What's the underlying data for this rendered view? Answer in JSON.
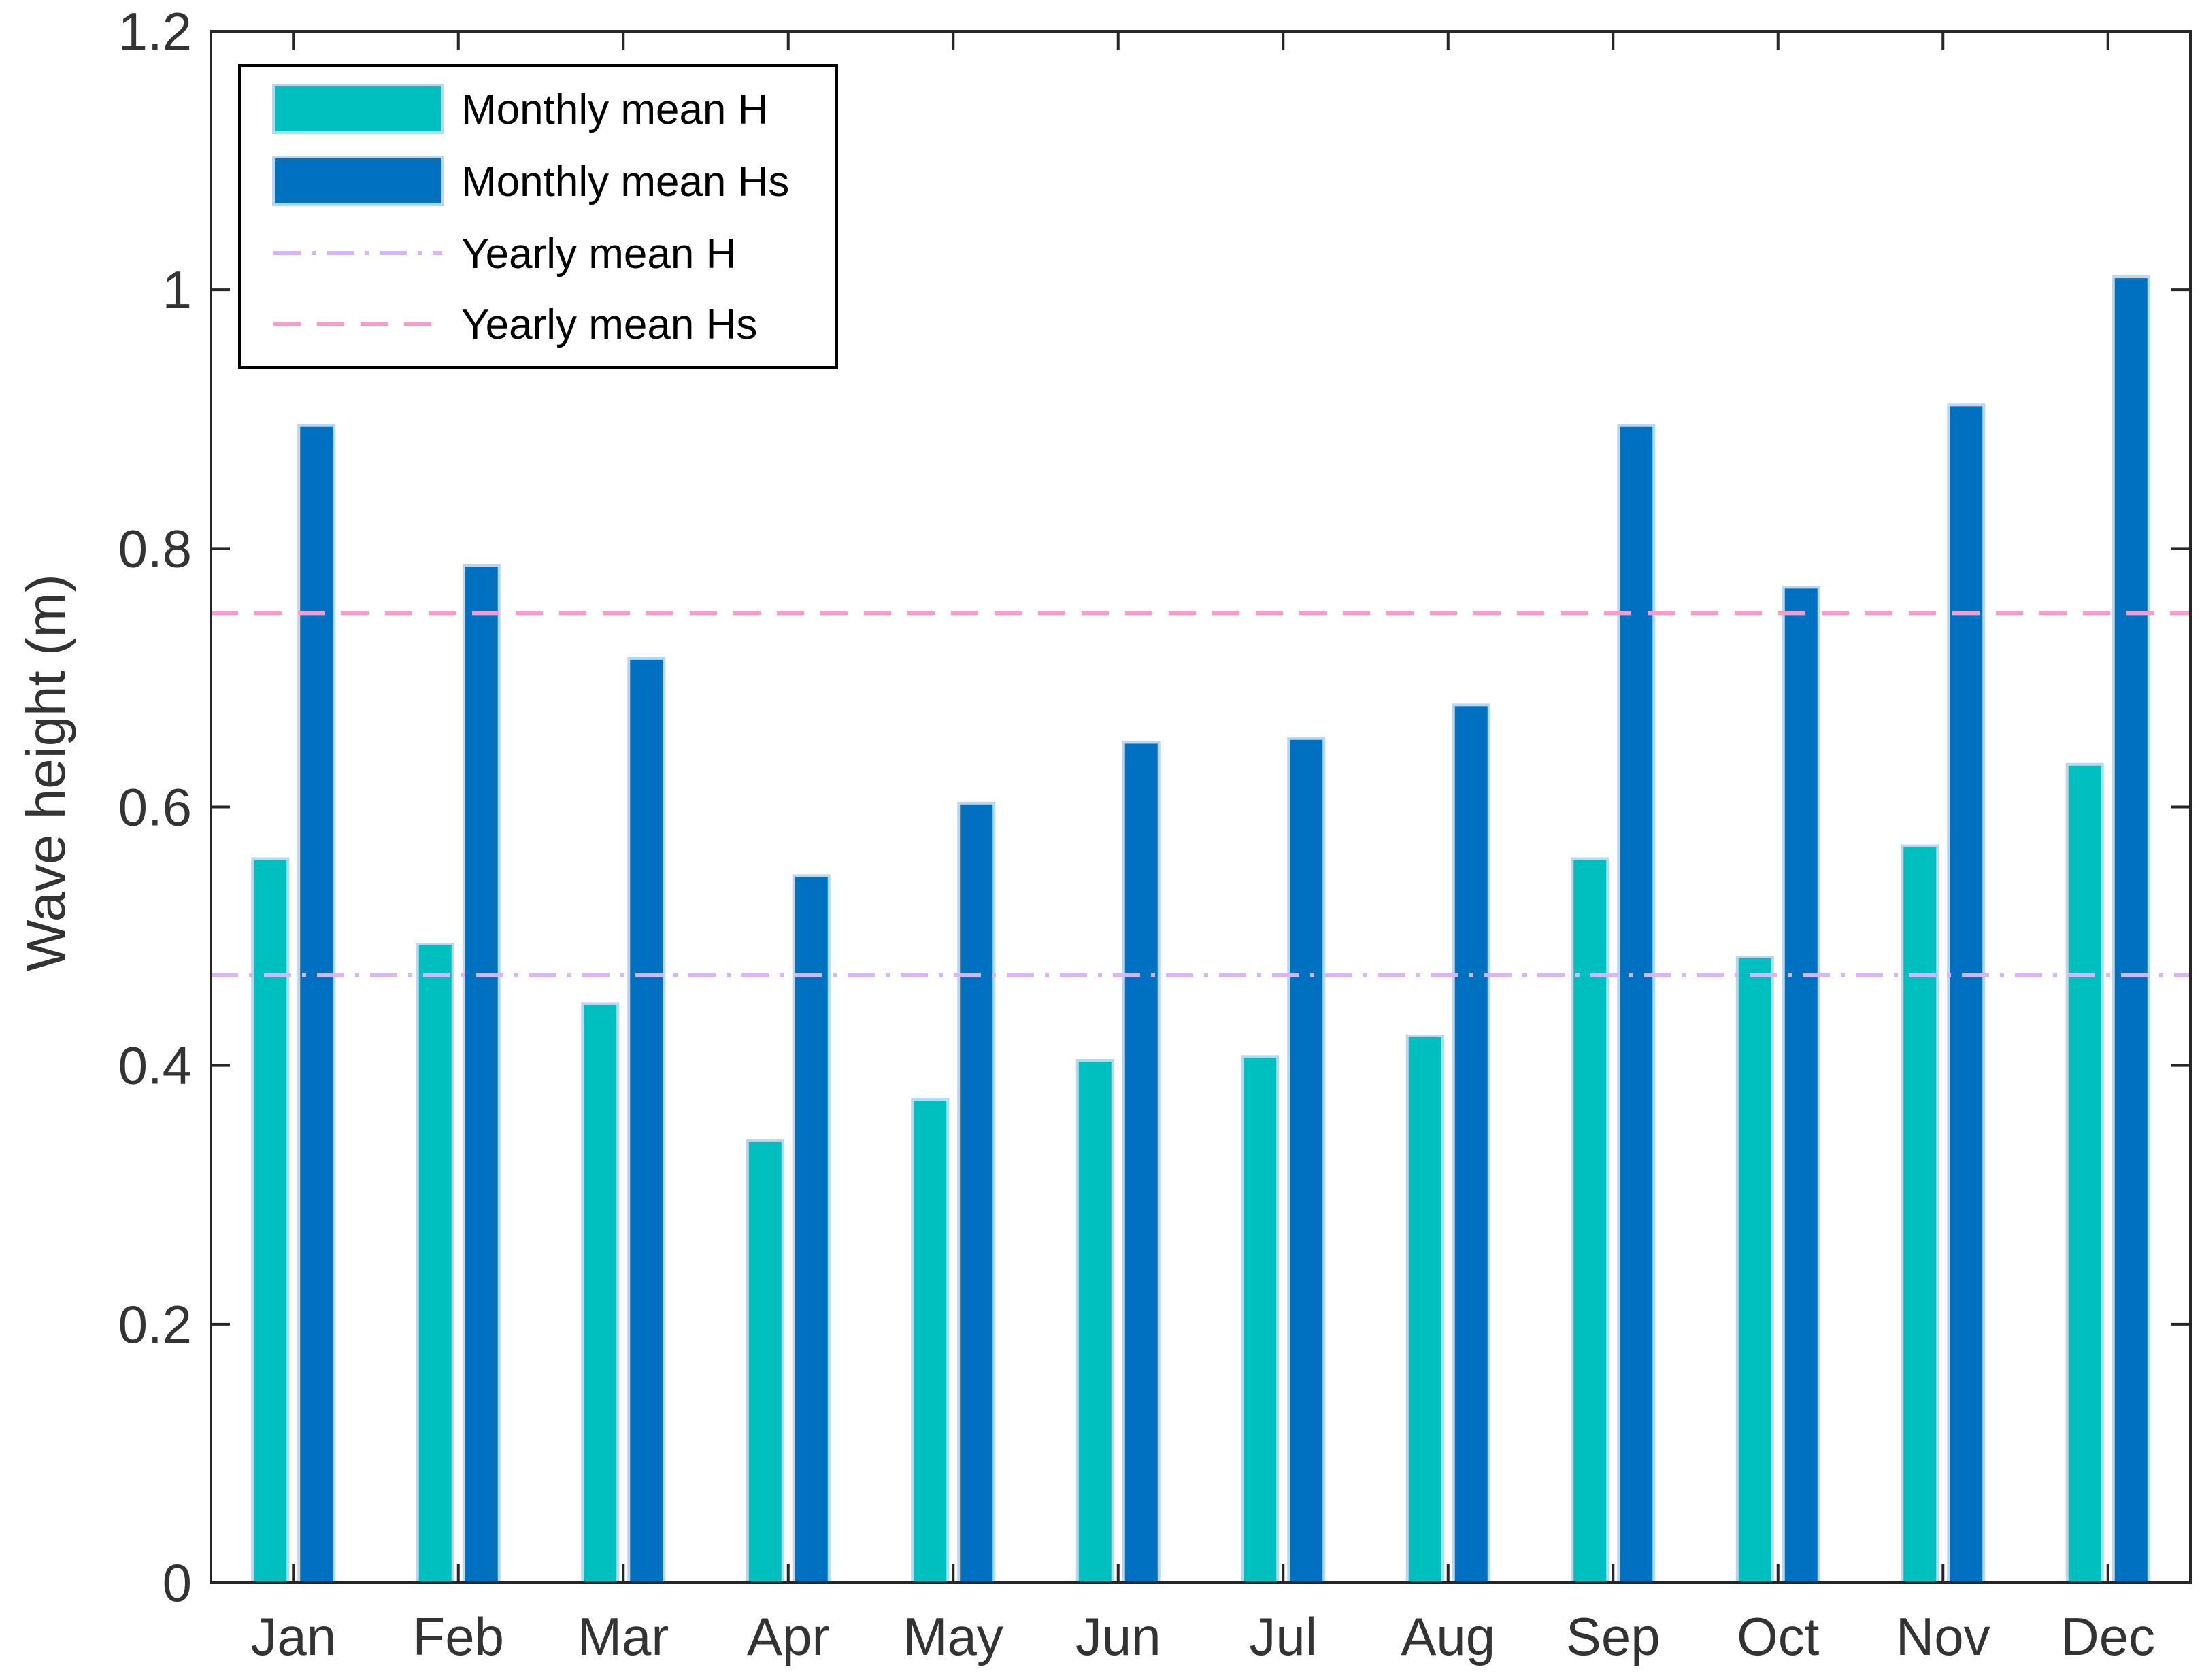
{
  "chart_data": {
    "type": "bar",
    "title": "",
    "xlabel": "",
    "ylabel": "Wave height (m)",
    "ylim": [
      0,
      1.2
    ],
    "yticks": [
      0,
      0.2,
      0.4,
      0.6,
      0.8,
      1,
      1.2
    ],
    "ytick_labels": [
      "0",
      "0.2",
      "0.4",
      "0.6",
      "0.8",
      "1",
      "1.2"
    ],
    "categories": [
      "Jan",
      "Feb",
      "Mar",
      "Apr",
      "May",
      "Jun",
      "Jul",
      "Aug",
      "Sep",
      "Oct",
      "Nov",
      "Dec"
    ],
    "series": [
      {
        "name": "Monthly mean H",
        "color": "#00BFBF",
        "values": [
          0.56,
          0.494,
          0.448,
          0.342,
          0.374,
          0.404,
          0.407,
          0.423,
          0.56,
          0.484,
          0.57,
          0.633
        ]
      },
      {
        "name": "Monthly mean Hs",
        "color": "#0070C0",
        "values": [
          0.895,
          0.787,
          0.715,
          0.547,
          0.603,
          0.65,
          0.653,
          0.679,
          0.895,
          0.77,
          0.911,
          1.01
        ]
      }
    ],
    "reference_lines": [
      {
        "name": "Yearly mean H",
        "value": 0.47,
        "color": "#D8B4FF",
        "style": "dash-dot"
      },
      {
        "name": "Yearly mean Hs",
        "value": 0.75,
        "color": "#FF99CC",
        "style": "dashed"
      }
    ],
    "legend": {
      "placement": "top-left",
      "entries": [
        "Monthly mean H",
        "Monthly mean Hs",
        "Yearly mean H",
        "Yearly mean Hs"
      ]
    },
    "grid": false
  }
}
